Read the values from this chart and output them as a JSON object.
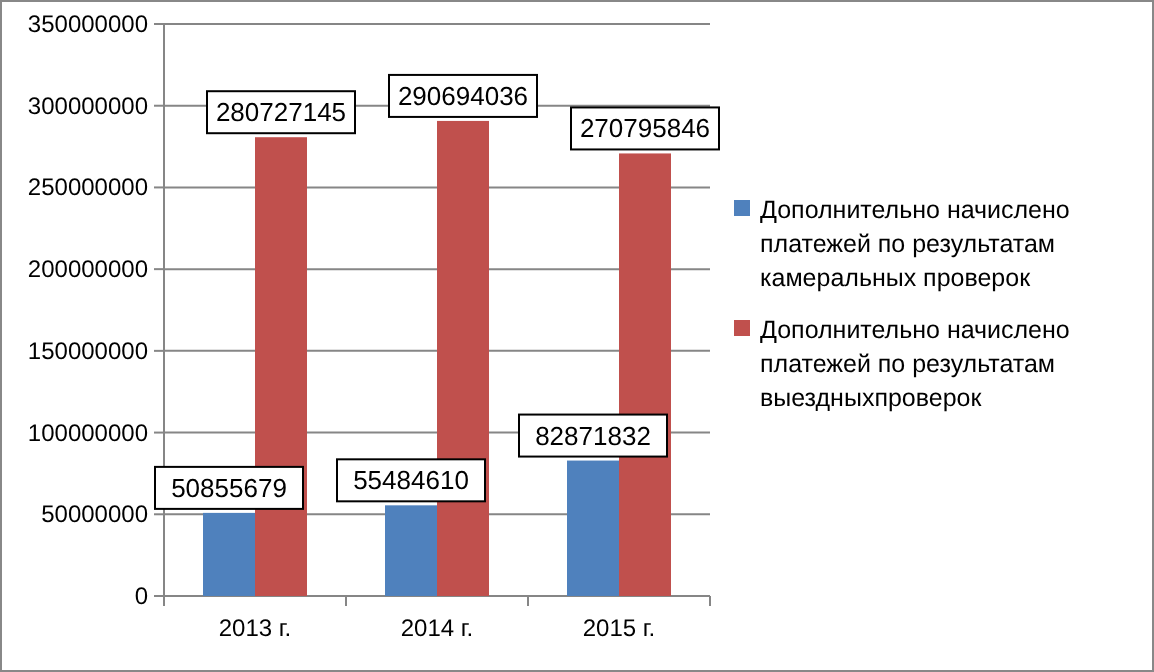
{
  "chart_data": {
    "type": "bar",
    "categories": [
      "2013 г.",
      "2014 г.",
      "2015 г."
    ],
    "series": [
      {
        "name": "Дополнительно начислено платежей по результатам камеральных проверок",
        "color": "#4f81bd",
        "values": [
          50855679,
          55484610,
          82871832
        ]
      },
      {
        "name": "Дополнительно начислено платежей по результатам выездныхпроверок",
        "color": "#c0504d",
        "values": [
          280727145,
          290694036,
          270795846
        ]
      }
    ],
    "ylim": [
      0,
      350000000
    ],
    "yticks": [
      0,
      50000000,
      100000000,
      150000000,
      200000000,
      250000000,
      300000000,
      350000000
    ],
    "grid": "y",
    "legend": "right",
    "data_labels": true
  }
}
